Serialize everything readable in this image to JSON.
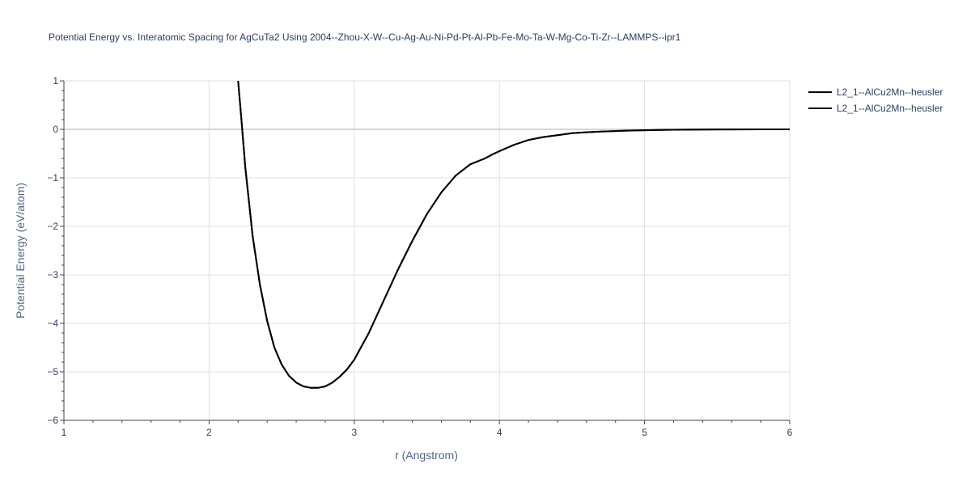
{
  "chart_data": {
    "type": "line",
    "title": "Potential Energy vs. Interatomic Spacing for AgCuTa2 Using 2004--Zhou-X-W--Cu-Ag-Au-Ni-Pd-Pt-Al-Pb-Fe-Mo-Ta-W-Mg-Co-Ti-Zr--LAMMPS--ipr1",
    "xlabel": "r (Angstrom)",
    "ylabel": "Potential Energy (eV/atom)",
    "xlim": [
      1,
      6
    ],
    "ylim": [
      -6,
      1
    ],
    "xticks": [
      1,
      2,
      3,
      4,
      5,
      6
    ],
    "yticks": [
      1,
      0,
      -1,
      -2,
      -3,
      -4,
      -5,
      -6
    ],
    "ytick_labels": [
      "1",
      "0",
      "−1",
      "−2",
      "−3",
      "−4",
      "−5",
      "−6"
    ],
    "grid": true,
    "legend_position": "top-right",
    "series": [
      {
        "name": "L2_1--AlCu2Mn--heusler",
        "color": "#000000",
        "x": [
          2.2,
          2.22,
          2.25,
          2.3,
          2.35,
          2.4,
          2.45,
          2.5,
          2.55,
          2.6,
          2.65,
          2.7,
          2.75,
          2.8,
          2.85,
          2.9,
          2.95,
          3.0,
          3.1,
          3.2,
          3.3,
          3.4,
          3.5,
          3.6,
          3.7,
          3.8,
          3.9,
          3.95,
          4.0,
          4.1,
          4.2,
          4.3,
          4.4,
          4.5,
          4.6,
          4.7,
          4.8,
          4.9,
          5.0,
          5.1,
          5.2,
          5.4,
          5.6,
          5.8,
          6.0
        ],
        "y": [
          1.0,
          0.3,
          -0.8,
          -2.2,
          -3.2,
          -3.95,
          -4.5,
          -4.85,
          -5.08,
          -5.22,
          -5.3,
          -5.33,
          -5.33,
          -5.3,
          -5.22,
          -5.1,
          -4.95,
          -4.75,
          -4.2,
          -3.55,
          -2.9,
          -2.3,
          -1.75,
          -1.3,
          -0.95,
          -0.72,
          -0.6,
          -0.52,
          -0.45,
          -0.32,
          -0.22,
          -0.16,
          -0.12,
          -0.08,
          -0.06,
          -0.045,
          -0.035,
          -0.025,
          -0.018,
          -0.012,
          -0.008,
          -0.004,
          -0.002,
          -0.001,
          0.0
        ]
      },
      {
        "name": "L2_1--AlCu2Mn--heusler",
        "color": "#000000",
        "x": [
          2.2,
          2.22,
          2.25,
          2.3,
          2.35,
          2.4,
          2.45,
          2.5,
          2.55,
          2.6,
          2.65,
          2.7,
          2.75,
          2.8,
          2.85,
          2.9,
          2.95,
          3.0,
          3.1,
          3.2,
          3.3,
          3.4,
          3.5,
          3.6,
          3.7,
          3.8,
          3.9,
          3.95,
          4.0,
          4.1,
          4.2,
          4.3,
          4.4,
          4.5,
          4.6,
          4.7,
          4.8,
          4.9,
          5.0,
          5.1,
          5.2,
          5.4,
          5.6,
          5.8,
          6.0
        ],
        "y": [
          1.0,
          0.3,
          -0.8,
          -2.2,
          -3.2,
          -3.95,
          -4.5,
          -4.85,
          -5.08,
          -5.22,
          -5.3,
          -5.33,
          -5.33,
          -5.3,
          -5.22,
          -5.1,
          -4.95,
          -4.75,
          -4.2,
          -3.55,
          -2.9,
          -2.3,
          -1.75,
          -1.3,
          -0.95,
          -0.72,
          -0.6,
          -0.52,
          -0.45,
          -0.32,
          -0.22,
          -0.16,
          -0.12,
          -0.08,
          -0.06,
          -0.045,
          -0.035,
          -0.025,
          -0.018,
          -0.012,
          -0.008,
          -0.004,
          -0.002,
          -0.001,
          0.0
        ]
      }
    ]
  }
}
